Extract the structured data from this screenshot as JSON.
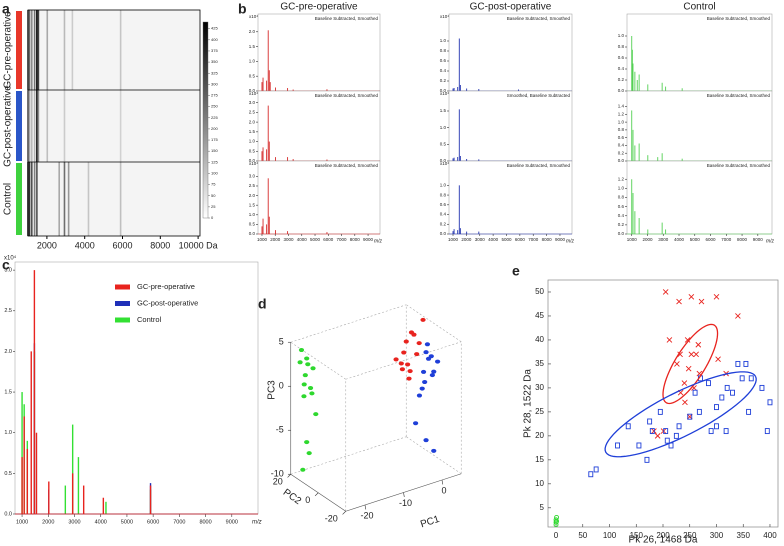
{
  "chart_data": [
    {
      "type": "heatmap",
      "label": "a",
      "xlim": [
        1000,
        10100
      ],
      "xticks": [
        2000,
        4000,
        6000,
        8000,
        {
          "value": 10000,
          "label": "10000 Da"
        }
      ],
      "clim": [
        0,
        440
      ],
      "cticks": [
        0,
        25,
        50,
        75,
        100,
        125,
        150,
        175,
        200,
        225,
        250,
        275,
        300,
        325,
        350,
        375,
        400,
        425
      ],
      "rows": [
        {
          "name": "GC-pre-operative",
          "color": "#e8372a",
          "x": [
            1000,
            1080,
            1200,
            1350,
            1470,
            1550,
            2020,
            2930,
            3350,
            5900
          ],
          "values": [
            300,
            260,
            200,
            240,
            420,
            330,
            150,
            120,
            90,
            100
          ]
        },
        {
          "name": "GC-post-operative",
          "color": "#2a56c8",
          "x": [
            1000,
            1080,
            1200,
            1350,
            1470,
            1550,
            2020,
            2930,
            5900
          ],
          "values": [
            180,
            150,
            120,
            130,
            400,
            200,
            110,
            90,
            80
          ]
        },
        {
          "name": "Control",
          "color": "#3ed23e",
          "x": [
            1000,
            1080,
            1200,
            1350,
            1470,
            2650,
            2930,
            3150,
            4200,
            5900
          ],
          "values": [
            380,
            360,
            300,
            220,
            300,
            150,
            250,
            180,
            100,
            110
          ]
        }
      ]
    },
    {
      "type": "spectra",
      "label": "b",
      "xlim": [
        700,
        9900
      ],
      "xticks": [
        1000,
        2000,
        3000,
        4000,
        5000,
        6000,
        7000,
        8000,
        9000
      ],
      "xlabel": "m/z",
      "columns": [
        {
          "title": "GC-pre-operative",
          "color": "#d62a2a"
        },
        {
          "title": "GC-post-operative",
          "color": "#2233b0"
        },
        {
          "title": "Control",
          "color": "#52d052"
        }
      ],
      "panels": [
        {
          "annotation": "Baseline Subtracted, Smoothed",
          "multiplier": "x10⁴",
          "ylim": [
            0,
            2.6
          ],
          "yticks": [
            {
              "value": 0,
              "label": "0.0"
            },
            0.5,
            {
              "value": 1,
              "label": "1.0"
            },
            1.5,
            {
              "value": 2,
              "label": "2.0"
            }
          ],
          "x": [
            1000,
            1080,
            1350,
            1470,
            1550,
            1620,
            2020,
            2930,
            3350,
            5900
          ],
          "values": [
            0.3,
            0.45,
            0.35,
            2.05,
            0.7,
            0.3,
            0.12,
            0.1,
            0.05,
            0.06
          ]
        },
        {
          "annotation": "Baseline Subtracted, Smoothed",
          "multiplier": "x10⁴",
          "ylim": [
            0,
            1.54
          ],
          "yticks": [
            {
              "value": 0,
              "label": "0.0"
            },
            0.2,
            0.4,
            0.6,
            0.8,
            {
              "value": 1,
              "label": "1.0"
            }
          ],
          "x": [
            1000,
            1080,
            1350,
            1470,
            1550,
            2020,
            2930,
            5900
          ],
          "values": [
            0.05,
            0.06,
            0.08,
            1.05,
            0.12,
            0.05,
            0.04,
            0.03
          ]
        },
        {
          "annotation": "Baseline Subtracted, Smoothed",
          "ylim": [
            0,
            1.4
          ],
          "yticks": [
            {
              "value": 0,
              "label": "0.0"
            },
            0.2,
            0.4,
            0.6,
            0.8,
            {
              "value": 1,
              "label": "1.0"
            }
          ],
          "x": [
            1000,
            1040,
            1080,
            1200,
            1350,
            1470,
            2020,
            2930,
            3150,
            4200
          ],
          "values": [
            1.0,
            0.75,
            0.5,
            0.35,
            0.2,
            0.3,
            0.12,
            0.15,
            0.08,
            0.05
          ]
        },
        {
          "annotation": "Baseline Subtracted, Smoothed",
          "multiplier": "x10⁴",
          "ylim": [
            0,
            3.6
          ],
          "yticks": [
            {
              "value": 0,
              "label": "0.0"
            },
            0.5,
            {
              "value": 1,
              "label": "1.0"
            },
            1.5,
            {
              "value": 2,
              "label": "2.0"
            },
            2.5,
            {
              "value": 3,
              "label": "3.0"
            }
          ],
          "x": [
            1000,
            1080,
            1350,
            1470,
            1550,
            2020,
            2930,
            3350,
            5900
          ],
          "values": [
            0.5,
            0.7,
            0.6,
            2.85,
            1.0,
            0.2,
            0.2,
            0.1,
            0.08
          ]
        },
        {
          "annotation": "Smoothed, Baseline Subtracted",
          "multiplier": "x10⁴",
          "ylim": [
            0,
            2.1
          ],
          "yticks": [
            {
              "value": 0,
              "label": "0.0"
            },
            0.5,
            {
              "value": 1,
              "label": "1.0"
            },
            1.5
          ],
          "x": [
            1000,
            1080,
            1350,
            1470,
            1550,
            2020,
            2930
          ],
          "values": [
            0.08,
            0.1,
            0.12,
            1.55,
            0.15,
            0.06,
            0.05
          ]
        },
        {
          "annotation": "Baseline Subtracted, Smoothed",
          "ylim": [
            0,
            1.8
          ],
          "yticks": [
            {
              "value": 0,
              "label": "0.0"
            },
            0.2,
            0.4,
            0.6,
            0.8,
            {
              "value": 1,
              "label": "1.0"
            },
            1.2,
            1.4
          ],
          "x": [
            1000,
            1080,
            1200,
            1470,
            2020,
            2650,
            2930,
            4200
          ],
          "values": [
            1.3,
            0.8,
            0.4,
            0.45,
            0.15,
            0.1,
            0.2,
            0.06
          ]
        },
        {
          "annotation": "Baseline Subtracted, Smoothed",
          "multiplier": "x10⁴",
          "ylim": [
            0,
            3.8
          ],
          "yticks": [
            {
              "value": 0,
              "label": "0.0"
            },
            0.5,
            {
              "value": 1,
              "label": "1.0"
            },
            1.5,
            {
              "value": 2,
              "label": "2.0"
            },
            2.5,
            {
              "value": 3,
              "label": "3.0"
            }
          ],
          "x": [
            1000,
            1080,
            1350,
            1470,
            1550,
            2020,
            2930,
            5900
          ],
          "values": [
            0.4,
            0.8,
            0.5,
            2.9,
            0.9,
            0.2,
            0.15,
            0.1
          ]
        },
        {
          "annotation": "Baseline Subtracted, Smoothed",
          "multiplier": "x10⁴",
          "ylim": [
            0,
            1.5
          ],
          "yticks": [
            {
              "value": 0,
              "label": "0.0"
            },
            0.2,
            0.4,
            0.6,
            0.8,
            {
              "value": 1,
              "label": "1.0"
            }
          ],
          "x": [
            1000,
            1080,
            1350,
            1470,
            1550,
            2020,
            2930
          ],
          "values": [
            0.06,
            0.1,
            0.08,
            1.0,
            0.12,
            0.05,
            0.05
          ]
        },
        {
          "annotation": "Baseline Subtracted, Smoothed",
          "ylim": [
            0,
            1.6
          ],
          "yticks": [
            {
              "value": 0,
              "label": "0.0"
            },
            0.2,
            0.4,
            0.6,
            0.8,
            {
              "value": 1,
              "label": "1.0"
            },
            1.2
          ],
          "x": [
            1000,
            1080,
            1200,
            1470,
            2020,
            2930,
            3150
          ],
          "values": [
            1.2,
            0.9,
            0.5,
            0.35,
            0.1,
            0.25,
            0.1
          ]
        }
      ]
    },
    {
      "type": "spectrum",
      "label": "c",
      "xlim": [
        730,
        10000
      ],
      "ylim": [
        0,
        3.1
      ],
      "multiplier": "x10⁴",
      "xlabel": "m/z",
      "xticks": [
        1000,
        2000,
        3000,
        4000,
        5000,
        6000,
        7000,
        8000,
        9000
      ],
      "yticks": [
        {
          "value": 0,
          "label": "0.0"
        },
        0.5,
        {
          "value": 1,
          "label": "1.0"
        },
        1.5,
        {
          "value": 2,
          "label": "2.0"
        },
        2.5,
        {
          "value": 3,
          "label": "3.0"
        }
      ],
      "series": [
        {
          "name": "GC-pre-operative",
          "color": "#e8231e",
          "x": [
            1000,
            1080,
            1200,
            1350,
            1470,
            1550,
            2020,
            2930,
            3350,
            4100,
            5900
          ],
          "values": [
            0.7,
            1.2,
            0.8,
            2.0,
            3.0,
            1.0,
            0.4,
            0.5,
            0.35,
            0.2,
            0.35
          ]
        },
        {
          "name": "GC-post-operative",
          "color": "#1f2fb8",
          "x": [
            1470,
            2020,
            5900
          ],
          "values": [
            2.1,
            0.3,
            0.38
          ]
        },
        {
          "name": "Control",
          "color": "#33e033",
          "x": [
            1000,
            1080,
            1200,
            1470,
            2650,
            2930,
            3150,
            4200,
            5900
          ],
          "values": [
            1.5,
            1.35,
            0.9,
            2.0,
            0.35,
            1.1,
            0.7,
            0.15,
            0.3
          ]
        }
      ]
    },
    {
      "type": "scatter3d",
      "label": "d",
      "xlabel": "PC1",
      "ylabel": "PC2",
      "zlabel": "PC3",
      "xlim": [
        -25,
        5
      ],
      "ylim": [
        -20,
        20
      ],
      "zlim": [
        -10,
        5
      ],
      "xticks": [
        -20,
        -10,
        0
      ],
      "yticks": [
        -20,
        0,
        20
      ],
      "zticks": [
        -10,
        -5,
        0,
        5
      ],
      "series": [
        {
          "color": "#2ed82e",
          "x": [
            -24,
            -23,
            -22,
            -23,
            -24,
            -22,
            -23,
            -21,
            -24,
            -22,
            -23,
            -22,
            -24,
            -21
          ],
          "y": [
            15,
            14,
            16,
            15,
            13,
            14,
            16,
            15,
            16,
            13,
            14,
            15,
            14,
            13
          ],
          "z": [
            4.5,
            3.5,
            2.5,
            1.5,
            0.8,
            0,
            -1,
            2,
            3,
            -0.5,
            -6,
            -7.5,
            -9,
            -3
          ]
        },
        {
          "color": "#e8231e",
          "x": [
            1,
            0,
            -1,
            2,
            0,
            1,
            -2,
            3,
            -1,
            2,
            0,
            4,
            -3
          ],
          "y": [
            5,
            6,
            5,
            4,
            5,
            6,
            4,
            5,
            6,
            6,
            4,
            5,
            5
          ],
          "z": [
            4,
            3,
            2,
            1.5,
            0.5,
            -0.5,
            1,
            2.5,
            0,
            3.5,
            -1,
            5,
            1.5
          ]
        },
        {
          "color": "#1f3fd8",
          "x": [
            3,
            4,
            2,
            5,
            3,
            4,
            2,
            6,
            3,
            5,
            2,
            3,
            5,
            1
          ],
          "y": [
            0,
            1,
            -1,
            0,
            1,
            -1,
            0,
            0,
            -1,
            1,
            2,
            0,
            0,
            2
          ],
          "z": [
            2,
            1,
            0,
            -0.5,
            -1.5,
            1.5,
            -2,
            0.5,
            3,
            -1,
            -3,
            -8,
            -9.5,
            -6
          ]
        }
      ]
    },
    {
      "type": "scatter",
      "label": "e",
      "xlabel": "Pk 26, 1468 Da",
      "ylabel": "Pk 28, 1522 Da",
      "xlim": [
        -15,
        415
      ],
      "ylim": [
        1,
        52.5
      ],
      "xticks": [
        0,
        50,
        100,
        150,
        200,
        250,
        300,
        350,
        400
      ],
      "yticks": [
        5,
        10,
        15,
        20,
        25,
        30,
        35,
        40,
        45,
        50
      ],
      "series": [
        {
          "color": "#e8231e",
          "marker": "x",
          "x": [
            205,
            230,
            253,
            272,
            300,
            340,
            212,
            246,
            266,
            232,
            253,
            262,
            226,
            248,
            268,
            240,
            258,
            303,
            318,
            241,
            250,
            201,
            190,
            183,
            233
          ],
          "values": [
            50,
            48,
            49,
            48,
            49,
            45,
            40,
            40,
            39,
            37,
            37,
            37,
            35,
            34,
            33,
            31,
            30,
            36,
            33,
            27,
            24,
            21,
            20,
            21,
            29
          ]
        },
        {
          "color": "#1f3fd8",
          "marker": "square",
          "x": [
            65,
            75,
            115,
            135,
            155,
            170,
            175,
            180,
            195,
            205,
            208,
            215,
            225,
            230,
            250,
            260,
            270,
            285,
            290,
            300,
            310,
            318,
            320,
            330,
            340,
            348,
            355,
            360,
            365,
            385,
            395,
            400,
            300,
            268
          ],
          "values": [
            12,
            13,
            18,
            22,
            18,
            15,
            23,
            21,
            25,
            21,
            19,
            18,
            20,
            22,
            24,
            29,
            32,
            31,
            21,
            26,
            28,
            21,
            30,
            29,
            35,
            32,
            35,
            25,
            32,
            30,
            21,
            27,
            22,
            25
          ]
        },
        {
          "color": "#2ed82e",
          "marker": "circle",
          "x": [
            0,
            0,
            1,
            0,
            1
          ],
          "values": [
            2,
            2.5,
            3,
            1.5,
            2.2
          ]
        }
      ],
      "ellipses": [
        {
          "color": "#e8231e",
          "center": [
            251,
            35
          ],
          "axis1": [
            46,
            8
          ],
          "axis2": [
            -22,
            2
          ]
        },
        {
          "color": "#1f3fd8",
          "center": [
            233,
            24.5
          ],
          "axis1": [
            140,
            7.9
          ],
          "axis2": [
            19,
            -4
          ]
        }
      ]
    }
  ]
}
